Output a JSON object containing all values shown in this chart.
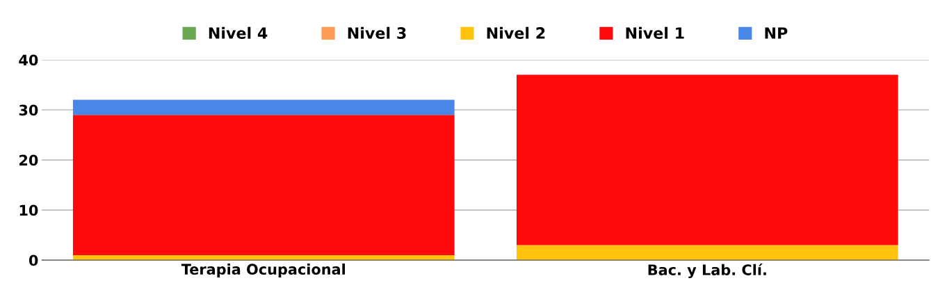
{
  "chart_data": {
    "type": "bar",
    "stacked": true,
    "categories": [
      "Terapia Ocupacional",
      "Bac. y Lab. Clí."
    ],
    "series": [
      {
        "name": "Nivel 4",
        "color": "#6aa84f",
        "values": [
          0,
          0
        ]
      },
      {
        "name": "Nivel 3",
        "color": "#ff9955",
        "values": [
          0,
          0
        ]
      },
      {
        "name": "Nivel 2",
        "color": "#ffc20e",
        "values": [
          1,
          3
        ]
      },
      {
        "name": "Nivel 1",
        "color": "#ff0a0a",
        "values": [
          28,
          34
        ]
      },
      {
        "name": "NP",
        "color": "#4a86e8",
        "values": [
          3,
          0
        ]
      }
    ],
    "ylim": [
      0,
      40
    ],
    "yticks": [
      0,
      10,
      20,
      30,
      40
    ],
    "grid": "y",
    "legend": "top"
  }
}
